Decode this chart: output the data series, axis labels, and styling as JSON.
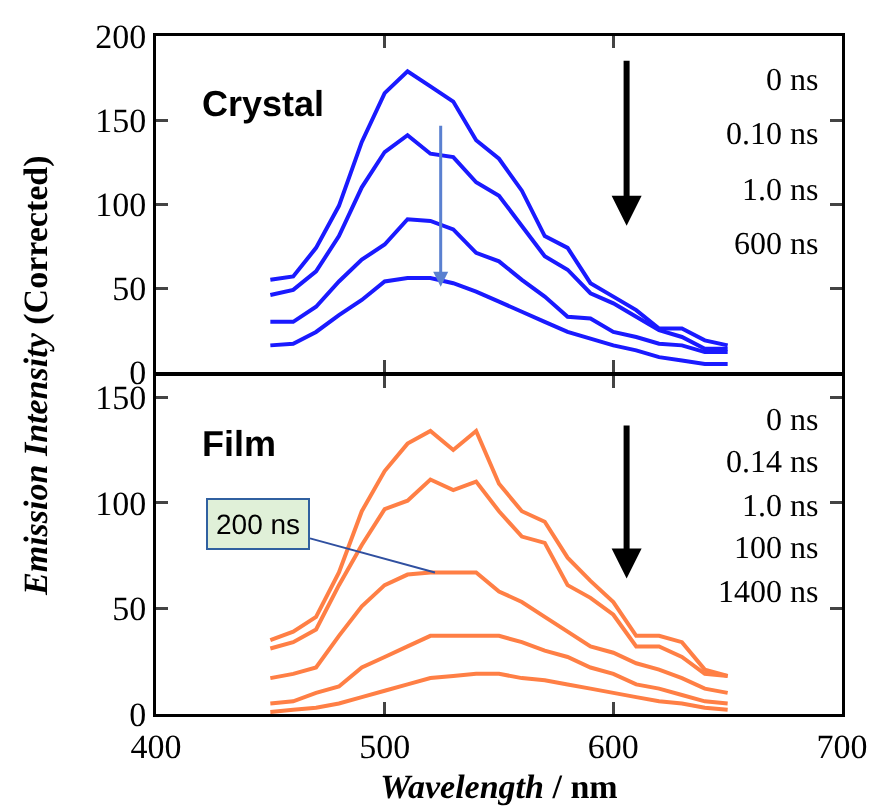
{
  "chart_data": [
    {
      "type": "line",
      "ylabel": "Emission Intensity (Corrected)",
      "x": [
        450,
        460,
        470,
        480,
        490,
        500,
        510,
        520,
        530,
        540,
        550,
        560,
        570,
        580,
        590,
        600,
        610,
        620,
        630,
        640,
        650
      ],
      "series": [
        {
          "color": "#1a1aff",
          "values": [
            55,
            57,
            74,
            99,
            137,
            166,
            179,
            170,
            161,
            138,
            127,
            108,
            81,
            74,
            53,
            45,
            37,
            26,
            26,
            19,
            16
          ]
        },
        {
          "color": "#1a1aff",
          "values": [
            46,
            49,
            60,
            81,
            110,
            131,
            141,
            130,
            128,
            113,
            105,
            87,
            69,
            61,
            47,
            41,
            33,
            25,
            21,
            14,
            14
          ]
        },
        {
          "color": "#1a1aff",
          "values": [
            30,
            30,
            39,
            54,
            67,
            76,
            91,
            90,
            85,
            71,
            66,
            55,
            45,
            33,
            32,
            24,
            21,
            17,
            16,
            12,
            12
          ]
        },
        {
          "color": "#1a1aff",
          "values": [
            16,
            17,
            24,
            34,
            43,
            54,
            56,
            56,
            53,
            48,
            42,
            36,
            30,
            24,
            20,
            16,
            13,
            9,
            7,
            5,
            5
          ]
        }
      ],
      "annotations": [
        "Crystal",
        "0 ns",
        "0.10 ns",
        "1.0 ns",
        "600 ns"
      ],
      "xlim": [
        400,
        700
      ],
      "xticks": [
        400,
        500,
        600,
        700
      ],
      "ylim": [
        0,
        200
      ],
      "yticks": [
        0,
        50,
        100,
        150,
        200
      ],
      "tick_labels": "y",
      "grid": false,
      "marker": "none",
      "line_style": "solid"
    },
    {
      "type": "line",
      "xlabel": "Wavelength / nm",
      "x": [
        450,
        460,
        470,
        480,
        490,
        500,
        510,
        520,
        530,
        540,
        550,
        560,
        570,
        580,
        590,
        600,
        610,
        620,
        630,
        640,
        650
      ],
      "series": [
        {
          "color": "#ff7f45",
          "values": [
            35,
            39,
            46,
            67,
            96,
            115,
            128,
            134,
            125,
            134,
            109,
            96,
            91,
            74,
            63,
            53,
            37,
            37,
            34,
            21,
            18
          ]
        },
        {
          "color": "#ff7f45",
          "values": [
            31,
            34,
            40,
            61,
            80,
            97,
            101,
            111,
            106,
            110,
            96,
            84,
            81,
            61,
            55,
            47,
            32,
            32,
            27,
            19,
            18
          ]
        },
        {
          "color": "#ff7f45",
          "values": [
            17,
            19,
            22,
            37,
            51,
            61,
            66,
            67,
            67,
            67,
            58,
            53,
            46,
            39,
            32,
            29,
            24,
            21,
            17,
            12,
            10
          ]
        },
        {
          "color": "#ff7f45",
          "values": [
            5,
            6,
            10,
            13,
            22,
            27,
            32,
            37,
            37,
            37,
            37,
            34,
            30,
            27,
            22,
            19,
            14,
            12,
            9,
            6,
            5
          ]
        },
        {
          "color": "#ff7f45",
          "values": [
            1,
            2,
            3,
            5,
            8,
            11,
            14,
            17,
            18,
            19,
            19,
            17,
            16,
            14,
            12,
            10,
            8,
            6,
            5,
            3,
            2
          ]
        }
      ],
      "annotations": [
        "Film",
        "0 ns",
        "0.14 ns",
        "1.0 ns",
        "100 ns",
        "1400 ns",
        {
          "text": "200 ns",
          "x": 522,
          "y": 67
        }
      ],
      "xlim": [
        400,
        700
      ],
      "xticks": [
        400,
        500,
        600,
        700
      ],
      "ylim": [
        0,
        160
      ],
      "yticks": [
        0,
        50,
        100,
        150
      ],
      "grid": false,
      "marker": "none",
      "line_style": "solid"
    }
  ]
}
